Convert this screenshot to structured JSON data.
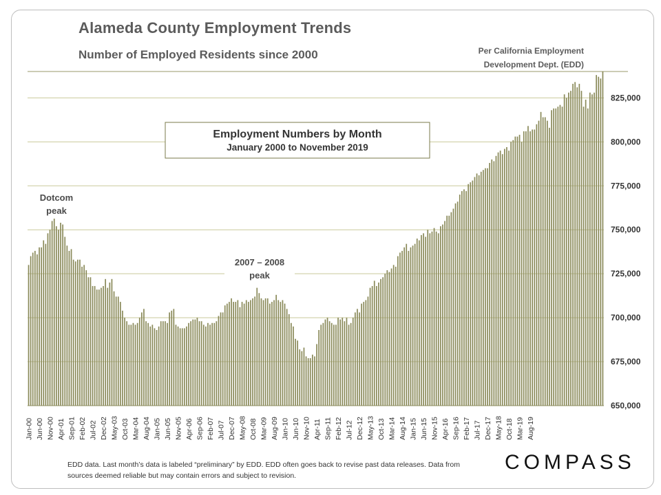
{
  "header": {
    "title": "Alameda County Employment Trends",
    "subtitle": "Number of Employed Residents since 2000",
    "source_line1": "Per California Employment",
    "source_line2": "Development Dept. (EDD)"
  },
  "footer": {
    "note": "EDD data. Last month’s data is labeled “preliminary” by EDD. EDD often goes back to revise past data releases. Data from sources deemed reliable but may contain errors and subject to revision.",
    "logo": "COMPASS"
  },
  "colors": {
    "bar": "#8a8a5a",
    "grid": "#c9c99a",
    "box_border": "#7a7a4a"
  },
  "chart_data": {
    "type": "bar",
    "title": "Employment Numbers by Month",
    "subtitle": "January 2000 to November 2019",
    "x_start": "Jan-00",
    "x_end": "Nov-19",
    "xlabel": "",
    "ylabel": "",
    "ylim": [
      650000,
      840000
    ],
    "yticks": [
      "650,000",
      "675,000",
      "700,000",
      "725,000",
      "750,000",
      "775,000",
      "800,000",
      "825,000"
    ],
    "ytick_values": [
      650000,
      675000,
      700000,
      725000,
      750000,
      775000,
      800000,
      825000
    ],
    "grid": true,
    "x_tick_labels": [
      "Jan-00",
      "Jun-00",
      "Nov-00",
      "Apr-01",
      "Sep-01",
      "Feb-02",
      "Jul-02",
      "Dec-02",
      "May-03",
      "Oct-03",
      "Mar-04",
      "Aug-04",
      "Jan-05",
      "Jun-05",
      "Nov-05",
      "Apr-06",
      "Sep-06",
      "Feb-07",
      "Jul-07",
      "Dec-07",
      "May-08",
      "Oct-08",
      "Mar-09",
      "Aug-09",
      "Jan-10",
      "Jun-10",
      "Nov-10",
      "Apr-11",
      "Sep-11",
      "Feb-12",
      "Jul-12",
      "Dec-12",
      "May-13",
      "Oct-13",
      "Mar-14",
      "Aug-14",
      "Jan-15",
      "Jun-15",
      "Nov-15",
      "Apr-16",
      "Sep-16",
      "Feb-17",
      "Jul-17",
      "Dec-17",
      "May-18",
      "Oct-18",
      "Mar-19",
      "Aug-19"
    ],
    "annotations": [
      {
        "label_line1": "Dotcom",
        "label_line2": "peak",
        "at": "Nov-00"
      },
      {
        "label_line1": "2007 – 2008",
        "label_line2": "peak",
        "at": "Dec-07"
      }
    ],
    "values": [
      730000,
      735000,
      737000,
      738000,
      736000,
      740000,
      740000,
      744000,
      742000,
      748000,
      750000,
      755000,
      757000,
      752000,
      750000,
      754000,
      753000,
      746000,
      741000,
      738000,
      739000,
      733000,
      732000,
      733000,
      733000,
      729000,
      730000,
      727000,
      723000,
      723000,
      718000,
      718000,
      716000,
      716000,
      717000,
      718000,
      722000,
      717000,
      720000,
      722000,
      715000,
      712000,
      712000,
      709000,
      704000,
      700000,
      698000,
      696000,
      696000,
      697000,
      696000,
      697000,
      700000,
      703000,
      705000,
      698000,
      697000,
      695000,
      696000,
      694000,
      693000,
      695000,
      698000,
      698000,
      698000,
      697000,
      703000,
      704000,
      705000,
      696000,
      695000,
      694000,
      694000,
      694000,
      695000,
      697000,
      698000,
      699000,
      699000,
      700000,
      698000,
      698000,
      696000,
      695000,
      697000,
      696000,
      697000,
      697000,
      698000,
      701000,
      703000,
      703000,
      707000,
      708000,
      709000,
      711000,
      709000,
      709000,
      710000,
      706000,
      709000,
      708000,
      710000,
      709000,
      710000,
      711000,
      712000,
      717000,
      714000,
      711000,
      710000,
      711000,
      711000,
      708000,
      709000,
      710000,
      713000,
      710000,
      709000,
      710000,
      708000,
      705000,
      702000,
      697000,
      695000,
      688000,
      687000,
      682000,
      681000,
      683000,
      678000,
      677000,
      677000,
      679000,
      678000,
      685000,
      693000,
      696000,
      697000,
      699000,
      700000,
      698000,
      697000,
      696000,
      696000,
      700000,
      699000,
      700000,
      698000,
      700000,
      696000,
      697000,
      700000,
      703000,
      705000,
      703000,
      708000,
      709000,
      710000,
      712000,
      717000,
      718000,
      721000,
      718000,
      720000,
      722000,
      723000,
      725000,
      727000,
      726000,
      728000,
      730000,
      729000,
      735000,
      737000,
      738000,
      740000,
      742000,
      738000,
      740000,
      741000,
      742000,
      745000,
      744000,
      747000,
      748000,
      746000,
      750000,
      748000,
      749000,
      751000,
      749000,
      748000,
      752000,
      753000,
      755000,
      758000,
      758000,
      760000,
      762000,
      765000,
      766000,
      770000,
      772000,
      773000,
      772000,
      776000,
      777000,
      778000,
      780000,
      782000,
      781000,
      783000,
      784000,
      785000,
      785000,
      788000,
      790000,
      789000,
      792000,
      794000,
      795000,
      793000,
      796000,
      797000,
      795000,
      800000,
      801000,
      803000,
      803000,
      804000,
      800000,
      806000,
      806000,
      809000,
      806000,
      807000,
      807000,
      810000,
      812000,
      817000,
      814000,
      814000,
      812000,
      808000,
      818000,
      819000,
      819000,
      820000,
      821000,
      820000,
      827000,
      825000,
      828000,
      829000,
      833000,
      834000,
      831000,
      833000,
      829000,
      820000,
      824000,
      819000,
      828000,
      827000,
      828000,
      838000,
      837000,
      836000,
      840000
    ]
  }
}
